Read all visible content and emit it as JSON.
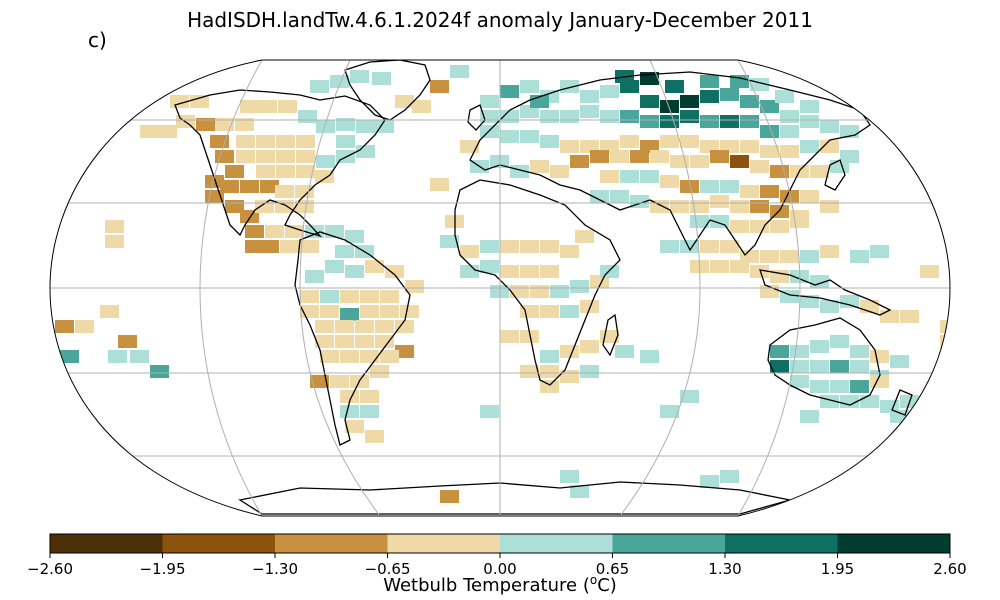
{
  "title": "HadISDH.landTw.4.6.1.2024f anomaly January-December 2011",
  "panel_label": "c)",
  "colorbar": {
    "label_text": "Wetbulb Temperature (",
    "label_super": "o",
    "label_end": "C)",
    "ticks": [
      "−2.60",
      "−1.95",
      "−1.30",
      "−0.65",
      "0.00",
      "0.65",
      "1.30",
      "1.95",
      "2.60"
    ],
    "colors": [
      "#4d2f06",
      "#8c520e",
      "#c8913f",
      "#efd9a7",
      "#abdfd7",
      "#4aa69a",
      "#0e6f63",
      "#003c30"
    ]
  },
  "map": {
    "projection": "Robinson",
    "gridlines": true,
    "colors": {
      "outline": "#000000",
      "graticule": "#b0b0b0",
      "coast": "#000000"
    }
  }
}
